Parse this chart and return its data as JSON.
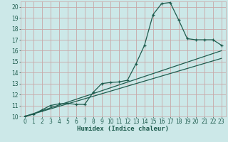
{
  "xlabel": "Humidex (Indice chaleur)",
  "bg_color": "#cce8e8",
  "grid_color": "#c8a8a8",
  "line_color": "#1e5c4e",
  "xlim": [
    -0.5,
    23.5
  ],
  "ylim": [
    10,
    20.5
  ],
  "xticks": [
    0,
    1,
    2,
    3,
    4,
    5,
    6,
    7,
    8,
    9,
    10,
    11,
    12,
    13,
    14,
    15,
    16,
    17,
    18,
    19,
    20,
    21,
    22,
    23
  ],
  "yticks": [
    10,
    11,
    12,
    13,
    14,
    15,
    16,
    17,
    18,
    19,
    20
  ],
  "series1_x": [
    0,
    1,
    2,
    3,
    4,
    5,
    6,
    7,
    8,
    9,
    10,
    11,
    12,
    13,
    14,
    15,
    16,
    17,
    18,
    19,
    20,
    21,
    22,
    23
  ],
  "series1_y": [
    10,
    10.2,
    10.6,
    11.0,
    11.15,
    11.2,
    11.1,
    11.1,
    12.2,
    13.0,
    13.1,
    13.15,
    13.3,
    14.8,
    16.5,
    19.3,
    20.3,
    20.4,
    18.8,
    17.1,
    17.0,
    17.0,
    17.0,
    16.5
  ],
  "series2_x": [
    0,
    23
  ],
  "series2_y": [
    10,
    16.0
  ],
  "series3_x": [
    0,
    23
  ],
  "series3_y": [
    10,
    15.3
  ]
}
